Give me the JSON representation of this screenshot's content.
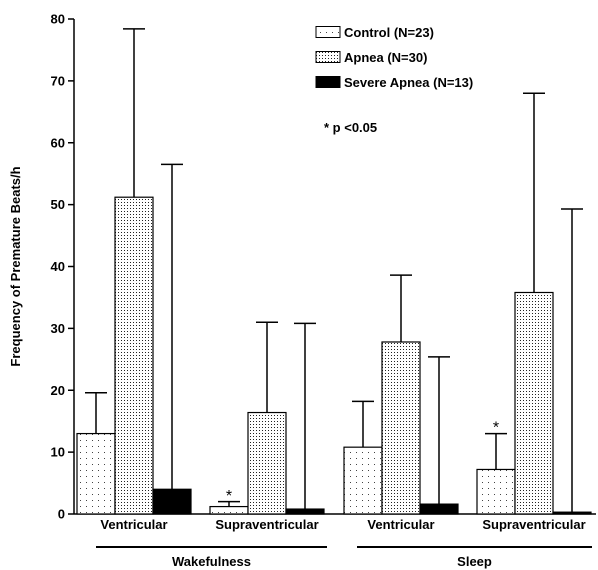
{
  "chart_data": {
    "type": "bar",
    "title": "",
    "ylabel": "Frequency of Premature Beats/h",
    "ylim": [
      0,
      80
    ],
    "yticks": [
      0,
      10,
      20,
      30,
      40,
      50,
      60,
      70,
      80
    ],
    "groups": [
      {
        "label": "Wakefulness",
        "categories": [
          "Ventricular",
          "Supraventricular"
        ]
      },
      {
        "label": "Sleep",
        "categories": [
          "Ventricular",
          "Supraventricular"
        ]
      }
    ],
    "categories": [
      "Ventricular",
      "Supraventricular",
      "Ventricular",
      "Supraventricular"
    ],
    "series": [
      {
        "name": "Control (N=23)",
        "pattern": "dots-sparse",
        "values": [
          13.0,
          1.2,
          10.8,
          7.2
        ],
        "error": [
          19.6,
          2.0,
          18.2,
          13.0
        ]
      },
      {
        "name": "Apnea (N=30)",
        "pattern": "dots-dense",
        "values": [
          51.2,
          16.4,
          27.8,
          35.8
        ],
        "error": [
          78.4,
          31.0,
          38.6,
          68.0
        ]
      },
      {
        "name": "Severe Apnea (N=13)",
        "pattern": "solid",
        "values": [
          4.0,
          0.8,
          1.6,
          0.3
        ],
        "error": [
          56.5,
          30.8,
          25.4,
          49.3
        ]
      }
    ],
    "annotations": [
      {
        "text": "*",
        "series": "Control (N=23)",
        "category_index": 1,
        "y": 2.9
      },
      {
        "text": "*",
        "series": "Control (N=23)",
        "category_index": 3,
        "y": 14.0
      }
    ],
    "legend_note": "* p <0.05",
    "legend_position": "top-right"
  }
}
